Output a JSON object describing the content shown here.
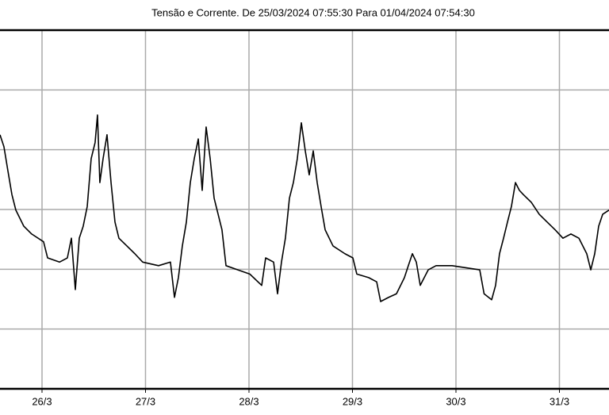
{
  "chart_data": {
    "type": "line",
    "title": "Tensão e Corrente. De 25/03/2024 07:55:30 Para 01/04/2024 07:54:30",
    "x": [
      25.594,
      25.632,
      25.67,
      25.709,
      25.747,
      25.824,
      25.9,
      26.015,
      26.054,
      26.169,
      26.245,
      26.284,
      26.322,
      26.36,
      26.398,
      26.437,
      26.475,
      26.513,
      26.536,
      26.559,
      26.59,
      26.628,
      26.667,
      26.705,
      26.743,
      26.82,
      26.897,
      26.973,
      27.126,
      27.241,
      27.28,
      27.318,
      27.356,
      27.395,
      27.433,
      27.471,
      27.51,
      27.548,
      27.586,
      27.625,
      27.663,
      27.739,
      27.778,
      27.893,
      28.008,
      28.123,
      28.161,
      28.238,
      28.276,
      28.314,
      28.352,
      28.391,
      28.429,
      28.467,
      28.506,
      28.544,
      28.582,
      28.621,
      28.659,
      28.697,
      28.736,
      28.812,
      28.927,
      29.004,
      29.042,
      29.157,
      29.234,
      29.272,
      29.349,
      29.425,
      29.502,
      29.54,
      29.579,
      29.617,
      29.655,
      29.732,
      29.808,
      29.962,
      30.115,
      30.23,
      30.272,
      30.345,
      30.383,
      30.421,
      30.46,
      30.498,
      30.536,
      30.575,
      30.613,
      30.651,
      30.728,
      30.805,
      30.881,
      30.958,
      31.034,
      31.111,
      31.188,
      31.264,
      31.303,
      31.341,
      31.379,
      31.418,
      31.479
    ],
    "series": [
      {
        "color": "#000000",
        "values": [
          4.25,
          4.05,
          3.65,
          3.25,
          2.99,
          2.72,
          2.59,
          2.46,
          2.19,
          2.12,
          2.19,
          2.52,
          1.66,
          2.52,
          2.72,
          3.05,
          3.85,
          4.12,
          4.58,
          3.45,
          3.85,
          4.25,
          3.45,
          2.79,
          2.52,
          2.39,
          2.26,
          2.12,
          2.06,
          2.12,
          1.53,
          1.86,
          2.39,
          2.79,
          3.45,
          3.85,
          4.18,
          3.32,
          4.38,
          3.85,
          3.19,
          2.66,
          2.06,
          1.99,
          1.92,
          1.73,
          2.19,
          2.12,
          1.59,
          2.12,
          2.52,
          3.19,
          3.45,
          3.85,
          4.45,
          3.98,
          3.58,
          3.98,
          3.45,
          3.05,
          2.66,
          2.39,
          2.26,
          2.19,
          1.92,
          1.86,
          1.79,
          1.46,
          1.53,
          1.59,
          1.86,
          2.06,
          2.26,
          2.12,
          1.73,
          1.99,
          2.06,
          2.06,
          2.02,
          1.99,
          1.59,
          1.49,
          1.73,
          2.26,
          2.52,
          2.79,
          3.05,
          3.45,
          3.32,
          3.25,
          3.12,
          2.92,
          2.79,
          2.66,
          2.52,
          2.59,
          2.52,
          2.26,
          1.99,
          2.26,
          2.72,
          2.92,
          2.99
        ]
      }
    ],
    "xlim": [
      25.594,
      31.479
    ],
    "xticks": [
      {
        "value": 26,
        "label": "26/3"
      },
      {
        "value": 27,
        "label": "27/3"
      },
      {
        "value": 28,
        "label": "28/3"
      },
      {
        "value": 29,
        "label": "29/3"
      },
      {
        "value": 30,
        "label": "30/3"
      },
      {
        "value": 31,
        "label": "31/3"
      }
    ],
    "ylim": [
      0,
      6
    ],
    "yticks": [
      1,
      2,
      3,
      4,
      5
    ],
    "grid": true
  }
}
